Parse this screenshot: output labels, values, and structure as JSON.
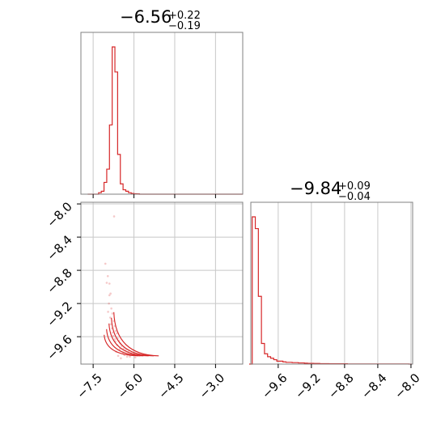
{
  "chart_data": [
    {
      "type": "histogram",
      "panel": "top-left",
      "title": {
        "main": "−6.56",
        "sup": "+0.22",
        "sub": "−0.19"
      },
      "bin_edges": [
        -7.7,
        -7.6,
        -7.5,
        -7.4,
        -7.3,
        -7.2,
        -7.1,
        -7.0,
        -6.9,
        -6.8,
        -6.7,
        -6.6,
        -6.5,
        -6.4,
        -6.3,
        -6.2,
        -6.1,
        -6.0,
        -5.9,
        -5.8,
        -5.7,
        -5.6,
        -5.5,
        -5.4,
        -5.3,
        -5.2,
        -5.1,
        -5.0,
        -4.9,
        -4.8,
        -4.7,
        -4.6,
        -4.5,
        -4.4,
        -4.3,
        -4.2,
        -4.1,
        -4.0,
        -3.9,
        -3.8,
        -3.7,
        -3.6,
        -3.5,
        -3.4,
        -3.3,
        -3.2,
        -3.1,
        -3.0,
        -2.9,
        -2.8,
        -2.7,
        -2.6,
        -2.5,
        -2.4,
        -2.3,
        -2.2,
        -2.1,
        -2.0
      ],
      "counts": [
        0,
        0,
        0,
        0,
        0.01,
        0.02,
        0.08,
        0.17,
        0.47,
        1.0,
        0.83,
        0.27,
        0.07,
        0.03,
        0.02,
        0.01,
        0.005,
        0.003,
        0.002,
        0,
        0,
        0,
        0,
        0,
        0,
        0,
        0,
        0,
        0,
        0,
        0,
        0,
        0,
        0,
        0,
        0,
        0,
        0,
        0,
        0,
        0,
        0,
        0,
        0,
        0,
        0,
        0,
        0,
        0,
        0,
        0,
        0,
        0,
        0,
        0,
        0,
        0
      ],
      "xlim": [
        -7.95,
        -2.0
      ],
      "grid": true,
      "color": "#d62728"
    },
    {
      "type": "scatter",
      "panel": "bottom-left",
      "points": [
        [
          -6.73,
          -8.15
        ],
        [
          -7.05,
          -8.72
        ],
        [
          -6.96,
          -8.87
        ],
        [
          -6.9,
          -8.96
        ],
        [
          -6.86,
          -9.08
        ],
        [
          -6.92,
          -9.2
        ],
        [
          -6.83,
          -9.26
        ],
        [
          -6.79,
          -9.32
        ],
        [
          -6.87,
          -9.37
        ],
        [
          -6.74,
          -9.41
        ],
        [
          -6.7,
          -9.47
        ],
        [
          -6.81,
          -9.5
        ],
        [
          -6.67,
          -9.53
        ],
        [
          -6.63,
          -9.56
        ],
        [
          -6.76,
          -9.59
        ],
        [
          -6.6,
          -9.62
        ],
        [
          -6.55,
          -9.65
        ],
        [
          -6.7,
          -9.63
        ],
        [
          -6.5,
          -9.68
        ],
        [
          -6.45,
          -9.71
        ],
        [
          -6.62,
          -9.7
        ],
        [
          -6.38,
          -9.74
        ],
        [
          -6.3,
          -9.76
        ],
        [
          -6.52,
          -9.75
        ],
        [
          -6.2,
          -9.78
        ],
        [
          -6.1,
          -9.8
        ],
        [
          -6.4,
          -9.79
        ],
        [
          -6.0,
          -9.81
        ],
        [
          -5.9,
          -9.82
        ],
        [
          -5.8,
          -9.83
        ],
        [
          -6.65,
          -9.78
        ],
        [
          -6.58,
          -9.83
        ],
        [
          -6.48,
          -9.86
        ],
        [
          -6.9,
          -9.1
        ],
        [
          -6.95,
          -9.3
        ],
        [
          -6.85,
          -9.45
        ],
        [
          -6.78,
          -9.55
        ],
        [
          -7.0,
          -8.95
        ],
        [
          -6.68,
          -9.66
        ],
        [
          -6.35,
          -9.82
        ],
        [
          -6.15,
          -9.84
        ],
        [
          -5.95,
          -9.85
        ],
        [
          -6.25,
          -9.84
        ]
      ],
      "contour_center": [
        -6.56,
        -9.84
      ],
      "xlim": [
        -7.95,
        -2.0
      ],
      "ylim": [
        -9.93,
        -7.98
      ],
      "grid": true,
      "color": "#d62728"
    },
    {
      "type": "histogram",
      "panel": "bottom-right",
      "title": {
        "main": "−9.84",
        "sup": "+0.09",
        "sub": "−0.04"
      },
      "bin_edges": [
        -9.95,
        -9.913,
        -9.876,
        -9.839,
        -9.802,
        -9.765,
        -9.728,
        -9.691,
        -9.654,
        -9.617,
        -9.58,
        -9.543,
        -9.506,
        -9.469,
        -9.432,
        -9.395,
        -9.358,
        -9.321,
        -9.284,
        -9.247,
        -9.21,
        -9.173,
        -9.136,
        -9.099,
        -9.062,
        -9.025,
        -8.988,
        -8.951,
        -8.914,
        -8.877,
        -8.84,
        -8.803,
        -8.766,
        -8.729,
        -8.692,
        -8.655,
        -8.618,
        -8.581,
        -8.544,
        -8.507,
        -8.47,
        -8.433,
        -8.396,
        -8.359,
        -8.322,
        -8.285,
        -8.248,
        -8.211,
        -8.174,
        -8.137,
        -8.1,
        -8.063,
        -8.026,
        -7.989
      ],
      "counts": [
        0,
        1.0,
        0.92,
        0.46,
        0.14,
        0.07,
        0.05,
        0.04,
        0.03,
        0.02,
        0.02,
        0.015,
        0.012,
        0.012,
        0.01,
        0.01,
        0.008,
        0.008,
        0.006,
        0.005,
        0.005,
        0.004,
        0.004,
        0.003,
        0.003,
        0.003,
        0.002,
        0.002,
        0.002,
        0.002,
        0.002,
        0.002,
        0.001,
        0.001,
        0.001,
        0.001,
        0.001,
        0.001,
        0.001,
        0.001,
        0.001,
        0.001,
        0.001,
        0.001,
        0.001,
        0.001,
        0.001,
        0.001,
        0.001,
        0.001,
        0.001,
        0.001,
        0
      ],
      "xlim": [
        -9.93,
        -7.98
      ],
      "grid": true,
      "color": "#d62728"
    }
  ],
  "axes": {
    "x_left_ticks": [
      {
        "value": -7.5,
        "label": "−7.5"
      },
      {
        "value": -6.0,
        "label": "−6.0"
      },
      {
        "value": -4.5,
        "label": "−4.5"
      },
      {
        "value": -3.0,
        "label": "−3.0"
      }
    ],
    "y_left_ticks": [
      {
        "value": -8.0,
        "label": "−8.0"
      },
      {
        "value": -8.4,
        "label": "−8.4"
      },
      {
        "value": -8.8,
        "label": "−8.8"
      },
      {
        "value": -9.2,
        "label": "−9.2"
      },
      {
        "value": -9.6,
        "label": "−9.6"
      }
    ],
    "x_right_ticks": [
      {
        "value": -9.6,
        "label": "−9.6"
      },
      {
        "value": -9.2,
        "label": "−9.2"
      },
      {
        "value": -8.8,
        "label": "−8.8"
      },
      {
        "value": -8.4,
        "label": "−8.4"
      },
      {
        "value": -8.0,
        "label": "−8.0"
      }
    ]
  },
  "colors": {
    "series": "#d62728",
    "grid": "#c8c8c8",
    "frame": "#808080"
  }
}
